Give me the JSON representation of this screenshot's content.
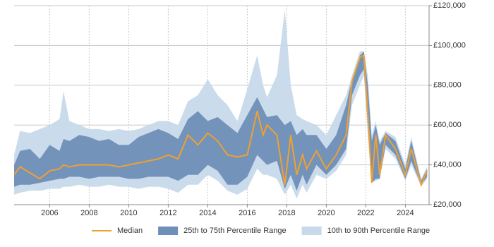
{
  "chart_data": {
    "type": "range-line",
    "x": [
      2004.2,
      2004.5,
      2005.0,
      2005.5,
      2006.0,
      2006.5,
      2006.7,
      2007.0,
      2007.5,
      2008.0,
      2008.5,
      2009.0,
      2009.5,
      2010.0,
      2010.5,
      2011.0,
      2011.5,
      2012.0,
      2012.5,
      2013.0,
      2013.5,
      2014.0,
      2014.5,
      2015.0,
      2015.5,
      2016.0,
      2016.5,
      2016.8,
      2017.0,
      2017.5,
      2017.9,
      2018.2,
      2018.5,
      2018.8,
      2019.0,
      2019.5,
      2020.0,
      2020.5,
      2021.0,
      2021.3,
      2021.7,
      2021.9,
      2022.1,
      2022.3,
      2022.5,
      2022.7,
      2023.0,
      2023.5,
      2024.0,
      2024.3,
      2024.8,
      2025.1
    ],
    "series": [
      {
        "name": "Median",
        "color": "#f0a030",
        "values": [
          35000,
          39000,
          36000,
          33000,
          37000,
          38000,
          40000,
          39000,
          40000,
          40000,
          40000,
          40000,
          39000,
          40000,
          41000,
          42000,
          43000,
          45000,
          43000,
          55000,
          50000,
          56000,
          52000,
          45000,
          44000,
          45000,
          67000,
          55000,
          60000,
          55000,
          30000,
          55000,
          35000,
          45000,
          38000,
          47000,
          38000,
          45000,
          55000,
          82000,
          94000,
          95000,
          65000,
          31000,
          55000,
          35000,
          55000,
          48000,
          35000,
          48000,
          30000,
          37000
        ]
      },
      {
        "name": "25th to 75th Percentile Range",
        "color": "#6e8fb8",
        "low": [
          29000,
          30000,
          30000,
          31000,
          32000,
          33000,
          33000,
          34000,
          34000,
          33000,
          34000,
          34000,
          34000,
          33000,
          33000,
          34000,
          34000,
          34000,
          32000,
          35000,
          35000,
          40000,
          37000,
          30000,
          30000,
          34000,
          45000,
          42000,
          40000,
          42000,
          28000,
          35000,
          27000,
          35000,
          30000,
          40000,
          35000,
          40000,
          48000,
          75000,
          85000,
          88000,
          60000,
          31000,
          33000,
          33000,
          50000,
          45000,
          33000,
          42000,
          30000,
          34000
        ],
        "high": [
          40000,
          47000,
          48000,
          43000,
          50000,
          47000,
          53000,
          52000,
          55000,
          54000,
          52000,
          53000,
          50000,
          50000,
          54000,
          56000,
          58000,
          56000,
          53000,
          63000,
          67000,
          62000,
          64000,
          60000,
          56000,
          65000,
          74000,
          68000,
          64000,
          65000,
          60000,
          62000,
          55000,
          58000,
          55000,
          55000,
          48000,
          55000,
          70000,
          83000,
          95000,
          97000,
          80000,
          52000,
          60000,
          50000,
          56000,
          52000,
          38000,
          52000,
          32000,
          38000
        ]
      },
      {
        "name": "10th to 90th Percentile Range",
        "color": "#c7d9ea",
        "low": [
          25000,
          26000,
          27000,
          27000,
          28000,
          28000,
          29000,
          29000,
          30000,
          29000,
          29000,
          30000,
          29000,
          29000,
          28000,
          29000,
          29000,
          28000,
          26000,
          30000,
          30000,
          35000,
          32000,
          27000,
          25000,
          28000,
          38000,
          35000,
          35000,
          33000,
          25000,
          30000,
          23000,
          30000,
          26000,
          35000,
          33000,
          37000,
          45000,
          70000,
          80000,
          85000,
          55000,
          31000,
          32000,
          33000,
          48000,
          43000,
          32000,
          40000,
          29000,
          33000
        ],
        "high": [
          45000,
          57000,
          56000,
          58000,
          60000,
          63000,
          77000,
          62000,
          60000,
          58000,
          58000,
          57000,
          58000,
          57000,
          58000,
          60000,
          62000,
          62000,
          60000,
          72000,
          75000,
          83000,
          75000,
          70000,
          62000,
          78000,
          95000,
          80000,
          74000,
          85000,
          118000,
          80000,
          65000,
          63000,
          62000,
          60000,
          55000,
          65000,
          75000,
          85000,
          97000,
          97000,
          85000,
          55000,
          62000,
          52000,
          57000,
          54000,
          40000,
          54000,
          33000,
          39000
        ]
      }
    ],
    "xlim": [
      2004.2,
      2025.2
    ],
    "xticks": [
      2006,
      2008,
      2010,
      2012,
      2014,
      2016,
      2018,
      2020,
      2022,
      2024
    ],
    "ylim": [
      20000,
      120000
    ],
    "yticks": [
      {
        "value": 20000,
        "label": "£20,000"
      },
      {
        "value": 40000,
        "label": "£40,000"
      },
      {
        "value": 60000,
        "label": "£60,000"
      },
      {
        "value": 80000,
        "label": "£80,000"
      },
      {
        "value": 100000,
        "label": "£100,000"
      },
      {
        "value": 120000,
        "label": "£120,000"
      }
    ],
    "grid": true
  }
}
